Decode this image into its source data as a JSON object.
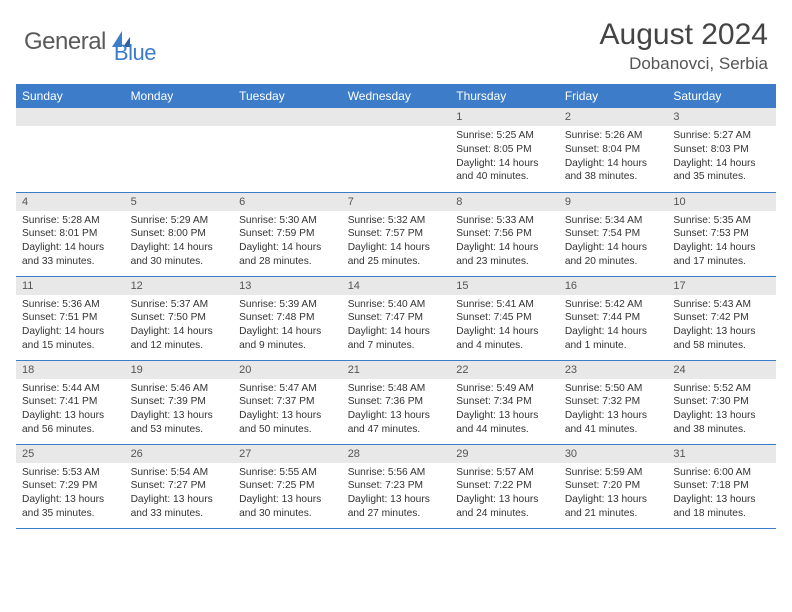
{
  "branding": {
    "name_part1": "General",
    "name_part2": "Blue",
    "colors": {
      "accent": "#3d7cc9",
      "text_gray": "#5a5a5a"
    }
  },
  "title": {
    "month": "August 2024",
    "location": "Dobanovci, Serbia"
  },
  "weekdays": [
    "Sunday",
    "Monday",
    "Tuesday",
    "Wednesday",
    "Thursday",
    "Friday",
    "Saturday"
  ],
  "weeks": [
    [
      null,
      null,
      null,
      null,
      {
        "n": "1",
        "sr": "5:25 AM",
        "ss": "8:05 PM",
        "dl": "14 hours and 40 minutes."
      },
      {
        "n": "2",
        "sr": "5:26 AM",
        "ss": "8:04 PM",
        "dl": "14 hours and 38 minutes."
      },
      {
        "n": "3",
        "sr": "5:27 AM",
        "ss": "8:03 PM",
        "dl": "14 hours and 35 minutes."
      }
    ],
    [
      {
        "n": "4",
        "sr": "5:28 AM",
        "ss": "8:01 PM",
        "dl": "14 hours and 33 minutes."
      },
      {
        "n": "5",
        "sr": "5:29 AM",
        "ss": "8:00 PM",
        "dl": "14 hours and 30 minutes."
      },
      {
        "n": "6",
        "sr": "5:30 AM",
        "ss": "7:59 PM",
        "dl": "14 hours and 28 minutes."
      },
      {
        "n": "7",
        "sr": "5:32 AM",
        "ss": "7:57 PM",
        "dl": "14 hours and 25 minutes."
      },
      {
        "n": "8",
        "sr": "5:33 AM",
        "ss": "7:56 PM",
        "dl": "14 hours and 23 minutes."
      },
      {
        "n": "9",
        "sr": "5:34 AM",
        "ss": "7:54 PM",
        "dl": "14 hours and 20 minutes."
      },
      {
        "n": "10",
        "sr": "5:35 AM",
        "ss": "7:53 PM",
        "dl": "14 hours and 17 minutes."
      }
    ],
    [
      {
        "n": "11",
        "sr": "5:36 AM",
        "ss": "7:51 PM",
        "dl": "14 hours and 15 minutes."
      },
      {
        "n": "12",
        "sr": "5:37 AM",
        "ss": "7:50 PM",
        "dl": "14 hours and 12 minutes."
      },
      {
        "n": "13",
        "sr": "5:39 AM",
        "ss": "7:48 PM",
        "dl": "14 hours and 9 minutes."
      },
      {
        "n": "14",
        "sr": "5:40 AM",
        "ss": "7:47 PM",
        "dl": "14 hours and 7 minutes."
      },
      {
        "n": "15",
        "sr": "5:41 AM",
        "ss": "7:45 PM",
        "dl": "14 hours and 4 minutes."
      },
      {
        "n": "16",
        "sr": "5:42 AM",
        "ss": "7:44 PM",
        "dl": "14 hours and 1 minute."
      },
      {
        "n": "17",
        "sr": "5:43 AM",
        "ss": "7:42 PM",
        "dl": "13 hours and 58 minutes."
      }
    ],
    [
      {
        "n": "18",
        "sr": "5:44 AM",
        "ss": "7:41 PM",
        "dl": "13 hours and 56 minutes."
      },
      {
        "n": "19",
        "sr": "5:46 AM",
        "ss": "7:39 PM",
        "dl": "13 hours and 53 minutes."
      },
      {
        "n": "20",
        "sr": "5:47 AM",
        "ss": "7:37 PM",
        "dl": "13 hours and 50 minutes."
      },
      {
        "n": "21",
        "sr": "5:48 AM",
        "ss": "7:36 PM",
        "dl": "13 hours and 47 minutes."
      },
      {
        "n": "22",
        "sr": "5:49 AM",
        "ss": "7:34 PM",
        "dl": "13 hours and 44 minutes."
      },
      {
        "n": "23",
        "sr": "5:50 AM",
        "ss": "7:32 PM",
        "dl": "13 hours and 41 minutes."
      },
      {
        "n": "24",
        "sr": "5:52 AM",
        "ss": "7:30 PM",
        "dl": "13 hours and 38 minutes."
      }
    ],
    [
      {
        "n": "25",
        "sr": "5:53 AM",
        "ss": "7:29 PM",
        "dl": "13 hours and 35 minutes."
      },
      {
        "n": "26",
        "sr": "5:54 AM",
        "ss": "7:27 PM",
        "dl": "13 hours and 33 minutes."
      },
      {
        "n": "27",
        "sr": "5:55 AM",
        "ss": "7:25 PM",
        "dl": "13 hours and 30 minutes."
      },
      {
        "n": "28",
        "sr": "5:56 AM",
        "ss": "7:23 PM",
        "dl": "13 hours and 27 minutes."
      },
      {
        "n": "29",
        "sr": "5:57 AM",
        "ss": "7:22 PM",
        "dl": "13 hours and 24 minutes."
      },
      {
        "n": "30",
        "sr": "5:59 AM",
        "ss": "7:20 PM",
        "dl": "13 hours and 21 minutes."
      },
      {
        "n": "31",
        "sr": "6:00 AM",
        "ss": "7:18 PM",
        "dl": "13 hours and 18 minutes."
      }
    ]
  ],
  "labels": {
    "sunrise": "Sunrise:",
    "sunset": "Sunset:",
    "daylight": "Daylight:"
  }
}
